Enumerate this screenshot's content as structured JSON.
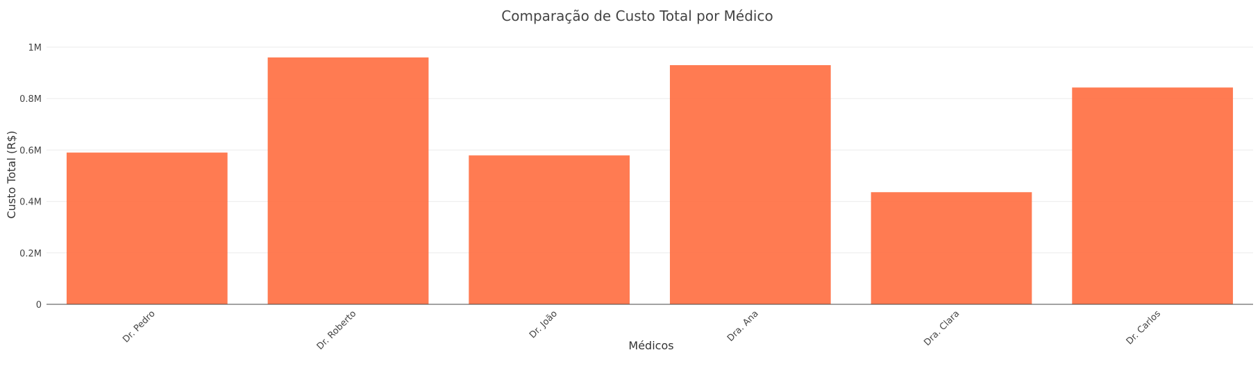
{
  "chart_data": {
    "type": "bar",
    "title": "Comparação de Custo Total por Médico",
    "xlabel": "Médicos",
    "ylabel": "Custo Total (R$)",
    "categories": [
      "Dr. Pedro",
      "Dr. Roberto",
      "Dr. João",
      "Dra. Ana",
      "Dra. Clara",
      "Dr. Carlos"
    ],
    "values": [
      590000,
      960000,
      579000,
      930000,
      436000,
      843000
    ],
    "ylim": [
      0,
      1000000
    ],
    "yticks": [
      0,
      200000,
      400000,
      600000,
      800000,
      1000000
    ],
    "ytick_labels": [
      "0",
      "0.2M",
      "0.4M",
      "0.6M",
      "0.8M",
      "1M"
    ],
    "bar_color": "#ff7043",
    "grid": true,
    "legend": "none"
  }
}
